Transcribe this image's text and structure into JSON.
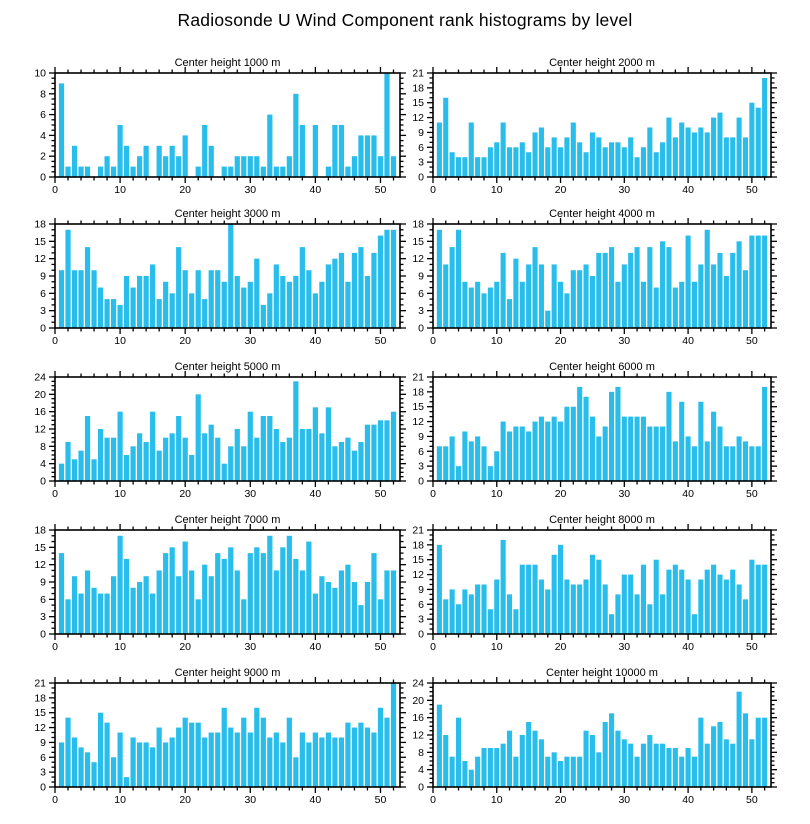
{
  "title": "Radiosonde U Wind Component rank histograms by level",
  "colors": {
    "bar": "#29BDEC",
    "axis": "#000000",
    "background": "#FFFFFF",
    "text": "#000000"
  },
  "chart_data": [
    {
      "type": "bar",
      "title": "Center height 1000 m",
      "xlim": [
        0,
        53
      ],
      "ylim": [
        0,
        10
      ],
      "y_tick_step": 2,
      "y_minor_step": 0.5,
      "x_tick_step": 10,
      "x_minor_step": 2,
      "x_tick_labels": [
        "0",
        "10",
        "20",
        "30",
        "40",
        "50"
      ],
      "y_tick_labels": [
        "0",
        "2",
        "4",
        "6",
        "8",
        "10"
      ],
      "grid": false,
      "legend": null,
      "values": [
        9,
        1,
        3,
        1,
        1,
        0,
        1,
        2,
        1,
        5,
        3,
        1,
        2,
        3,
        0,
        3,
        2,
        3,
        2,
        4,
        0,
        1,
        5,
        3,
        0,
        1,
        1,
        2,
        2,
        2,
        2,
        1,
        6,
        1,
        1,
        2,
        8,
        5,
        0,
        5,
        0,
        1,
        5,
        5,
        1,
        2,
        4,
        4,
        4,
        2,
        10,
        2
      ]
    },
    {
      "type": "bar",
      "title": "Center height 2000 m",
      "xlim": [
        0,
        53
      ],
      "ylim": [
        0,
        21
      ],
      "y_tick_step": 3,
      "y_minor_step": 1,
      "x_tick_step": 10,
      "x_minor_step": 2,
      "x_tick_labels": [
        "0",
        "10",
        "20",
        "30",
        "40",
        "50"
      ],
      "y_tick_labels": [
        "0",
        "3",
        "6",
        "9",
        "12",
        "15",
        "18",
        "21"
      ],
      "grid": false,
      "legend": null,
      "values": [
        11,
        16,
        5,
        4,
        4,
        11,
        4,
        4,
        6,
        7,
        11,
        6,
        6,
        7,
        5,
        9,
        10,
        6,
        8,
        6,
        8,
        11,
        7,
        5,
        9,
        8,
        6,
        7,
        7,
        6,
        8,
        4,
        6,
        10,
        5,
        7,
        12,
        8,
        11,
        10,
        9,
        10,
        9,
        12,
        13,
        8,
        8,
        12,
        8,
        15,
        14,
        20
      ]
    },
    {
      "type": "bar",
      "title": "Center height 3000 m",
      "xlim": [
        0,
        53
      ],
      "ylim": [
        0,
        18
      ],
      "y_tick_step": 3,
      "y_minor_step": 1,
      "x_tick_step": 10,
      "x_minor_step": 2,
      "x_tick_labels": [
        "0",
        "10",
        "20",
        "30",
        "40",
        "50"
      ],
      "y_tick_labels": [
        "0",
        "3",
        "6",
        "9",
        "12",
        "15",
        "18"
      ],
      "grid": false,
      "legend": null,
      "values": [
        10,
        17,
        10,
        10,
        14,
        10,
        7,
        5,
        5,
        4,
        9,
        7,
        9,
        9,
        11,
        5,
        8,
        6,
        14,
        10,
        6,
        10,
        5,
        10,
        10,
        8,
        18,
        9,
        7,
        8,
        12,
        4,
        6,
        11,
        9,
        8,
        9,
        14,
        10,
        6,
        8,
        11,
        12,
        13,
        8,
        13,
        14,
        9,
        13,
        16,
        17,
        17
      ]
    },
    {
      "type": "bar",
      "title": "Center height 4000 m",
      "xlim": [
        0,
        53
      ],
      "ylim": [
        0,
        18
      ],
      "y_tick_step": 3,
      "y_minor_step": 1,
      "x_tick_step": 10,
      "x_minor_step": 2,
      "x_tick_labels": [
        "0",
        "10",
        "20",
        "30",
        "40",
        "50"
      ],
      "y_tick_labels": [
        "0",
        "3",
        "6",
        "9",
        "12",
        "15",
        "18"
      ],
      "grid": false,
      "legend": null,
      "values": [
        17,
        11,
        14,
        17,
        8,
        7,
        8,
        6,
        7,
        8,
        13,
        5,
        12,
        8,
        11,
        14,
        11,
        3,
        11,
        8,
        6,
        10,
        10,
        11,
        9,
        13,
        13,
        14,
        8,
        11,
        13,
        14,
        8,
        14,
        7,
        15,
        14,
        7,
        8,
        16,
        8,
        11,
        17,
        11,
        13,
        9,
        13,
        15,
        10,
        16,
        16,
        16
      ]
    },
    {
      "type": "bar",
      "title": "Center height 5000 m",
      "xlim": [
        0,
        53
      ],
      "ylim": [
        0,
        24
      ],
      "y_tick_step": 4,
      "y_minor_step": 1,
      "x_tick_step": 10,
      "x_minor_step": 2,
      "x_tick_labels": [
        "0",
        "10",
        "20",
        "30",
        "40",
        "50"
      ],
      "y_tick_labels": [
        "0",
        "4",
        "8",
        "12",
        "16",
        "20",
        "24"
      ],
      "grid": false,
      "legend": null,
      "values": [
        4,
        9,
        5,
        7,
        15,
        5,
        12,
        10,
        10,
        16,
        6,
        8,
        11,
        9,
        16,
        7,
        10,
        11,
        15,
        10,
        6,
        20,
        11,
        13,
        10,
        4,
        8,
        12,
        8,
        16,
        10,
        15,
        15,
        12,
        9,
        10,
        23,
        12,
        12,
        17,
        11,
        17,
        8,
        9,
        10,
        7,
        9,
        13,
        13,
        14,
        14,
        16
      ]
    },
    {
      "type": "bar",
      "title": "Center height 6000 m",
      "xlim": [
        0,
        53
      ],
      "ylim": [
        0,
        21
      ],
      "y_tick_step": 3,
      "y_minor_step": 1,
      "x_tick_step": 10,
      "x_minor_step": 2,
      "x_tick_labels": [
        "0",
        "10",
        "20",
        "30",
        "40",
        "50"
      ],
      "y_tick_labels": [
        "0",
        "3",
        "6",
        "9",
        "12",
        "15",
        "18",
        "21"
      ],
      "grid": false,
      "legend": null,
      "values": [
        7,
        7,
        9,
        3,
        10,
        8,
        9,
        7,
        3,
        6,
        12,
        10,
        11,
        11,
        10,
        12,
        13,
        12,
        13,
        12,
        15,
        15,
        19,
        17,
        13,
        9,
        11,
        18,
        19,
        13,
        13,
        13,
        13,
        11,
        11,
        11,
        18,
        8,
        16,
        9,
        7,
        16,
        8,
        14,
        11,
        7,
        7,
        9,
        8,
        7,
        7,
        19
      ]
    },
    {
      "type": "bar",
      "title": "Center height 7000 m",
      "xlim": [
        0,
        53
      ],
      "ylim": [
        0,
        18
      ],
      "y_tick_step": 3,
      "y_minor_step": 1,
      "x_tick_step": 10,
      "x_minor_step": 2,
      "x_tick_labels": [
        "0",
        "10",
        "20",
        "30",
        "40",
        "50"
      ],
      "y_tick_labels": [
        "0",
        "3",
        "6",
        "9",
        "12",
        "15",
        "18"
      ],
      "grid": false,
      "legend": null,
      "values": [
        14,
        6,
        10,
        7,
        11,
        8,
        7,
        7,
        10,
        17,
        13,
        8,
        9,
        10,
        7,
        11,
        14,
        15,
        10,
        16,
        11,
        6,
        12,
        10,
        14,
        13,
        15,
        11,
        6,
        14,
        15,
        14,
        17,
        11,
        15,
        17,
        13,
        11,
        16,
        7,
        10,
        9,
        8,
        11,
        12,
        9,
        5,
        9,
        14,
        6,
        11,
        11
      ]
    },
    {
      "type": "bar",
      "title": "Center height 8000 m",
      "xlim": [
        0,
        53
      ],
      "ylim": [
        0,
        21
      ],
      "y_tick_step": 3,
      "y_minor_step": 1,
      "x_tick_step": 10,
      "x_minor_step": 2,
      "x_tick_labels": [
        "0",
        "10",
        "20",
        "30",
        "40",
        "50"
      ],
      "y_tick_labels": [
        "0",
        "3",
        "6",
        "9",
        "12",
        "15",
        "18",
        "21"
      ],
      "grid": false,
      "legend": null,
      "values": [
        18,
        7,
        9,
        6,
        9,
        8,
        10,
        10,
        5,
        11,
        19,
        8,
        5,
        14,
        14,
        14,
        11,
        9,
        16,
        18,
        11,
        10,
        10,
        11,
        16,
        15,
        10,
        4,
        8,
        12,
        12,
        8,
        14,
        6,
        15,
        8,
        13,
        14,
        13,
        11,
        4,
        11,
        13,
        14,
        12,
        11,
        13,
        10,
        7,
        15,
        14,
        14
      ]
    },
    {
      "type": "bar",
      "title": "Center height 9000 m",
      "xlim": [
        0,
        53
      ],
      "ylim": [
        0,
        21
      ],
      "y_tick_step": 3,
      "y_minor_step": 1,
      "x_tick_step": 10,
      "x_minor_step": 2,
      "x_tick_labels": [
        "0",
        "10",
        "20",
        "30",
        "40",
        "50"
      ],
      "y_tick_labels": [
        "0",
        "3",
        "6",
        "9",
        "12",
        "15",
        "18",
        "21"
      ],
      "grid": false,
      "legend": null,
      "values": [
        9,
        14,
        10,
        8,
        7,
        5,
        15,
        13,
        6,
        11,
        2,
        10,
        9,
        9,
        8,
        12,
        9,
        10,
        12,
        14,
        13,
        13,
        10,
        11,
        11,
        16,
        12,
        11,
        14,
        11,
        16,
        14,
        10,
        11,
        9,
        14,
        6,
        11,
        9,
        11,
        10,
        11,
        10,
        10,
        13,
        12,
        13,
        12,
        11,
        16,
        14,
        21
      ]
    },
    {
      "type": "bar",
      "title": "Center height 10000 m",
      "xlim": [
        0,
        53
      ],
      "ylim": [
        0,
        24
      ],
      "y_tick_step": 4,
      "y_minor_step": 1,
      "x_tick_step": 10,
      "x_minor_step": 2,
      "x_tick_labels": [
        "0",
        "10",
        "20",
        "30",
        "40",
        "50"
      ],
      "y_tick_labels": [
        "0",
        "4",
        "8",
        "12",
        "16",
        "20",
        "24"
      ],
      "grid": false,
      "legend": null,
      "values": [
        19,
        12,
        7,
        16,
        6,
        4,
        7,
        9,
        9,
        9,
        10,
        13,
        7,
        12,
        15,
        13,
        11,
        7,
        8,
        6,
        7,
        7,
        7,
        13,
        12,
        8,
        15,
        17,
        13,
        11,
        10,
        7,
        10,
        12,
        10,
        10,
        9,
        9,
        7,
        9,
        7,
        16,
        10,
        14,
        15,
        11,
        10,
        22,
        17,
        11,
        16,
        16
      ]
    }
  ]
}
